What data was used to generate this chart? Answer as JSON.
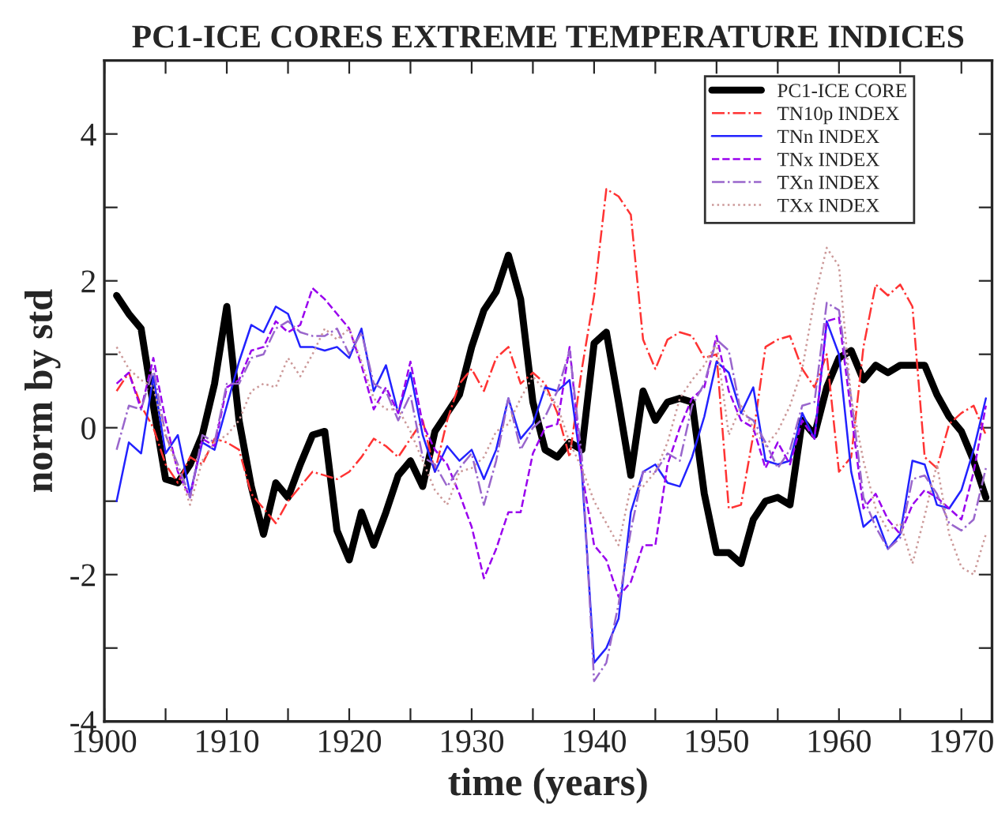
{
  "chart_data": {
    "type": "line",
    "title": "PC1-ICE CORES EXTREME TEMPERATURE INDICES",
    "xlabel": "time (years)",
    "ylabel": "norm by std",
    "x": [
      1901,
      1902,
      1903,
      1904,
      1905,
      1906,
      1907,
      1908,
      1909,
      1910,
      1911,
      1912,
      1913,
      1914,
      1915,
      1916,
      1917,
      1918,
      1919,
      1920,
      1921,
      1922,
      1923,
      1924,
      1925,
      1926,
      1927,
      1928,
      1929,
      1930,
      1931,
      1932,
      1933,
      1934,
      1935,
      1936,
      1937,
      1938,
      1939,
      1940,
      1941,
      1942,
      1943,
      1944,
      1945,
      1946,
      1947,
      1948,
      1949,
      1950,
      1951,
      1952,
      1953,
      1954,
      1955,
      1956,
      1957,
      1958,
      1959,
      1960,
      1961,
      1962,
      1963,
      1964,
      1965,
      1966,
      1967,
      1968,
      1969,
      1970,
      1971,
      1972
    ],
    "series": [
      {
        "name": "PC1-ICE CORE",
        "color": "#000000",
        "line_style": "solid",
        "values": [
          1.8,
          1.55,
          1.35,
          0.3,
          -0.7,
          -0.75,
          -0.5,
          -0.1,
          0.6,
          1.65,
          0.1,
          -0.8,
          -1.45,
          -0.75,
          -0.95,
          -0.5,
          -0.1,
          -0.05,
          -1.4,
          -1.8,
          -1.15,
          -1.6,
          -1.15,
          -0.65,
          -0.45,
          -0.8,
          -0.05,
          0.2,
          0.45,
          1.1,
          1.6,
          1.85,
          2.35,
          1.75,
          0.35,
          -0.3,
          -0.4,
          -0.2,
          -0.3,
          1.15,
          1.3,
          0.35,
          -0.65,
          0.5,
          0.1,
          0.35,
          0.4,
          0.35,
          -0.9,
          -1.7,
          -1.7,
          -1.85,
          -1.25,
          -1.0,
          -0.95,
          -1.05,
          0.1,
          -0.1,
          0.55,
          0.95,
          1.05,
          0.65,
          0.85,
          0.75,
          0.85,
          0.85,
          0.85,
          0.45,
          0.15,
          -0.05,
          -0.45,
          -0.95
        ]
      },
      {
        "name": "TN10p INDEX",
        "color": "#ff3333",
        "line_style": "dashdot",
        "values": [
          0.5,
          0.75,
          0.3,
          0.0,
          -0.5,
          -0.75,
          -0.4,
          -0.5,
          -0.15,
          -0.2,
          -0.3,
          -0.9,
          -1.1,
          -1.3,
          -1.0,
          -0.8,
          -0.6,
          -0.65,
          -0.7,
          -0.6,
          -0.4,
          -0.15,
          -0.25,
          -0.4,
          -0.15,
          0.1,
          -0.6,
          0.1,
          0.6,
          0.8,
          0.5,
          0.95,
          1.1,
          0.6,
          0.75,
          0.6,
          0.2,
          -0.4,
          0.8,
          1.8,
          3.25,
          3.15,
          2.9,
          1.2,
          0.8,
          1.2,
          1.3,
          1.25,
          0.95,
          1.0,
          -1.1,
          -1.05,
          -0.1,
          1.1,
          1.2,
          1.25,
          0.8,
          0.55,
          1.0,
          -0.6,
          -0.4,
          1.1,
          1.95,
          1.8,
          1.95,
          1.65,
          -0.4,
          -0.55,
          0.05,
          0.2,
          0.3,
          -0.1
        ]
      },
      {
        "name": "TNn INDEX",
        "color": "#2222ff",
        "line_style": "solid",
        "values": [
          -1.0,
          -0.2,
          -0.35,
          0.7,
          -0.35,
          -0.1,
          -0.9,
          -0.2,
          -0.3,
          0.3,
          0.9,
          1.4,
          1.3,
          1.65,
          1.55,
          1.1,
          1.1,
          1.05,
          1.1,
          0.95,
          1.35,
          0.5,
          0.85,
          0.2,
          0.75,
          -0.1,
          -0.6,
          -0.25,
          -0.45,
          -0.3,
          -0.7,
          -0.3,
          0.4,
          -0.15,
          0.05,
          0.55,
          0.5,
          0.65,
          -0.6,
          -3.2,
          -3.0,
          -2.6,
          -1.15,
          -0.6,
          -0.5,
          -0.75,
          -0.8,
          -0.4,
          0.15,
          0.9,
          0.75,
          0.2,
          0.55,
          -0.45,
          -0.5,
          -0.45,
          0.2,
          -0.15,
          1.45,
          1.0,
          -0.6,
          -1.35,
          -1.2,
          -1.65,
          -1.45,
          -0.45,
          -0.5,
          -1.05,
          -1.1,
          -0.85,
          -0.3,
          0.4
        ]
      },
      {
        "name": "TNx INDEX",
        "color": "#9900ee",
        "line_style": "dashed",
        "values": [
          0.6,
          0.75,
          0.25,
          0.95,
          0.1,
          -0.6,
          -0.95,
          -0.15,
          -0.25,
          0.55,
          0.65,
          1.05,
          1.1,
          1.45,
          1.3,
          1.4,
          1.9,
          1.75,
          1.55,
          1.35,
          0.85,
          0.25,
          0.55,
          0.2,
          0.9,
          0.05,
          -0.3,
          -0.5,
          -0.9,
          -1.35,
          -2.05,
          -1.65,
          -1.15,
          -1.15,
          -0.35,
          0.0,
          0.05,
          1.1,
          -0.6,
          -1.6,
          -1.8,
          -2.3,
          -2.1,
          -1.6,
          -1.6,
          -0.5,
          0.0,
          0.4,
          0.55,
          1.25,
          0.5,
          0.1,
          0.0,
          -0.55,
          -0.2,
          -0.5,
          0.1,
          -0.15,
          1.45,
          1.5,
          0.2,
          -1.1,
          -0.9,
          -1.25,
          -1.45,
          -1.05,
          -0.85,
          -0.95,
          -1.1,
          -1.25,
          -0.6,
          0.3
        ]
      },
      {
        "name": "TXn INDEX",
        "color": "#9966cc",
        "line_style": "dashdot",
        "values": [
          -0.3,
          0.3,
          0.25,
          0.8,
          -0.1,
          -0.5,
          -0.95,
          -0.1,
          -0.2,
          0.6,
          0.6,
          0.95,
          1.0,
          1.35,
          1.45,
          1.3,
          1.25,
          1.25,
          1.35,
          1.0,
          1.3,
          0.6,
          0.5,
          0.1,
          0.45,
          -0.4,
          -0.5,
          -0.8,
          -0.55,
          -0.35,
          -1.05,
          -0.45,
          0.4,
          -0.3,
          0.0,
          0.15,
          0.5,
          1.05,
          -0.4,
          -3.45,
          -3.2,
          -2.4,
          -1.4,
          -0.6,
          -0.6,
          -0.35,
          -0.45,
          0.3,
          0.6,
          1.2,
          1.05,
          0.2,
          0.1,
          -0.2,
          -0.55,
          -0.3,
          0.3,
          0.35,
          1.7,
          1.6,
          0.4,
          -0.95,
          -1.35,
          -1.65,
          -1.5,
          -0.7,
          -0.65,
          -0.9,
          -1.3,
          -1.4,
          -1.25,
          -0.55
        ]
      },
      {
        "name": "TXx INDEX",
        "color": "#cc9999",
        "line_style": "dotted",
        "values": [
          1.1,
          0.8,
          0.65,
          0.55,
          -0.1,
          -0.55,
          -1.05,
          -0.45,
          -0.2,
          -0.1,
          0.1,
          0.5,
          0.6,
          0.55,
          0.95,
          0.7,
          1.0,
          1.35,
          1.2,
          1.35,
          0.9,
          0.4,
          0.25,
          0.25,
          -0.05,
          -0.45,
          -0.85,
          -1.05,
          -0.6,
          -0.55,
          -0.4,
          -0.05,
          0.05,
          0.4,
          0.7,
          0.5,
          0.3,
          -0.2,
          -0.55,
          -1.0,
          -1.3,
          -1.6,
          -0.8,
          -0.8,
          -0.6,
          -0.2,
          0.4,
          0.65,
          0.85,
          1.15,
          -0.1,
          0.3,
          0.0,
          -0.25,
          -0.05,
          0.3,
          0.8,
          1.75,
          2.45,
          2.2,
          0.4,
          -0.45,
          -1.1,
          -1.4,
          -1.3,
          -1.85,
          -1.2,
          -0.5,
          -1.45,
          -1.9,
          -2.0,
          -1.45
        ]
      }
    ],
    "xlim": [
      1900,
      1972.5
    ],
    "xticks": [
      1900,
      {
        "value": 1905,
        "label": null
      },
      1910,
      {
        "value": 1915,
        "label": null
      },
      1920,
      {
        "value": 1925,
        "label": null
      },
      1930,
      {
        "value": 1935,
        "label": null
      },
      1940,
      {
        "value": 1945,
        "label": null
      },
      1950,
      {
        "value": 1955,
        "label": null
      },
      1960,
      {
        "value": 1965,
        "label": null
      },
      1970
    ],
    "ylim": [
      -4,
      5
    ],
    "yticks": [
      -4,
      {
        "value": -3,
        "label": null
      },
      -2,
      {
        "value": -1,
        "label": null
      },
      0,
      {
        "value": 1,
        "label": null
      },
      2,
      {
        "value": 3,
        "label": null
      },
      4,
      {
        "value": 5,
        "label": null
      }
    ],
    "legend": "top right",
    "grid": false
  }
}
